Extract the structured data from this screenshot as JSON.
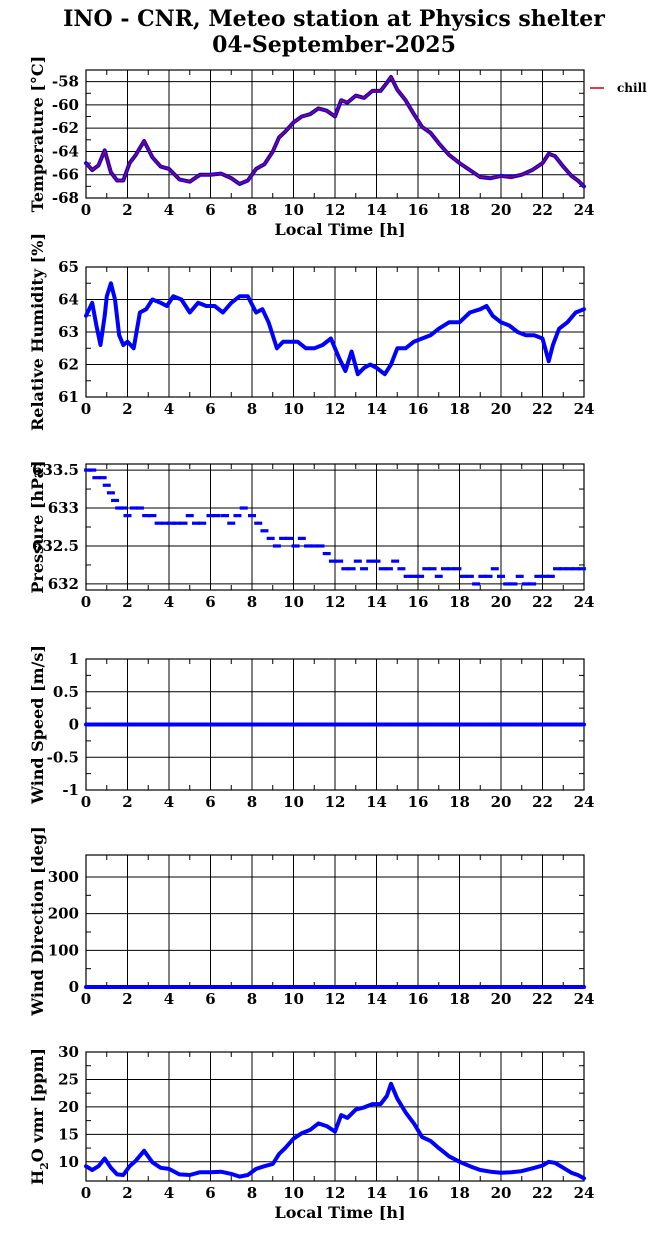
{
  "title_line1": "INO - CNR, Meteo station at Physics shelter",
  "title_line2": "04-September-2025",
  "colors": {
    "series": "#0000ff",
    "chill": "#cc0000",
    "grid": "#000000"
  },
  "chart_data": [
    {
      "type": "line",
      "ylabel": "Temperature [°C]",
      "xlabel": "Local Time [h]",
      "xlim": [
        0,
        24
      ],
      "ylim": [
        -68,
        -57
      ],
      "xticks": [
        0,
        2,
        4,
        6,
        8,
        10,
        12,
        14,
        16,
        18,
        20,
        22,
        24
      ],
      "yticks": [
        -68,
        -66,
        -64,
        -62,
        -60,
        -58
      ],
      "legend": "chill",
      "series": [
        {
          "name": "chill",
          "marker": "line",
          "x": [
            0,
            0.3,
            0.6,
            0.9,
            1.2,
            1.5,
            1.8,
            2.1,
            2.4,
            2.8,
            3.2,
            3.6,
            4.0,
            4.5,
            5.0,
            5.5,
            6.0,
            6.5,
            7.0,
            7.4,
            7.8,
            8.2,
            8.6,
            9.0,
            9.3,
            9.6,
            10.0,
            10.4,
            10.8,
            11.2,
            11.6,
            12.0,
            12.3,
            12.6,
            13.0,
            13.4,
            13.8,
            14.2,
            14.5,
            14.7,
            15.0,
            15.4,
            15.8,
            16.2,
            16.6,
            17.0,
            17.5,
            18.0,
            18.5,
            19.0,
            19.5,
            20.0,
            20.5,
            21.0,
            21.5,
            22.0,
            22.3,
            22.6,
            23.0,
            23.4,
            23.7,
            24.0
          ],
          "values": [
            -65.0,
            -65.6,
            -65.2,
            -63.9,
            -65.8,
            -66.5,
            -66.5,
            -65.0,
            -64.3,
            -63.1,
            -64.5,
            -65.3,
            -65.5,
            -66.4,
            -66.6,
            -66.0,
            -66.0,
            -65.9,
            -66.3,
            -66.8,
            -66.5,
            -65.5,
            -65.1,
            -64.0,
            -62.8,
            -62.3,
            -61.5,
            -61.0,
            -60.8,
            -60.3,
            -60.5,
            -61.0,
            -59.6,
            -59.8,
            -59.2,
            -59.4,
            -58.8,
            -58.8,
            -58.1,
            -57.6,
            -58.7,
            -59.6,
            -60.8,
            -61.9,
            -62.4,
            -63.3,
            -64.3,
            -65.0,
            -65.6,
            -66.2,
            -66.3,
            -66.1,
            -66.2,
            -66.0,
            -65.6,
            -65.0,
            -64.2,
            -64.4,
            -65.3,
            -66.1,
            -66.5,
            -67.0
          ]
        }
      ]
    },
    {
      "type": "line",
      "ylabel": "Relative Humidity [%]",
      "xlabel": "",
      "xlim": [
        0,
        24
      ],
      "ylim": [
        61,
        65
      ],
      "xticks": [
        0,
        2,
        4,
        6,
        8,
        10,
        12,
        14,
        16,
        18,
        20,
        22,
        24
      ],
      "yticks": [
        61,
        62,
        63,
        64,
        65
      ],
      "series": [
        {
          "marker": "line",
          "x": [
            0,
            0.3,
            0.5,
            0.7,
            0.9,
            1.0,
            1.2,
            1.4,
            1.6,
            1.8,
            2.0,
            2.3,
            2.6,
            2.9,
            3.2,
            3.6,
            3.9,
            4.2,
            4.6,
            5.0,
            5.4,
            5.8,
            6.2,
            6.6,
            7.0,
            7.4,
            7.8,
            8.2,
            8.5,
            8.8,
            9.2,
            9.5,
            9.8,
            10.2,
            10.6,
            11.0,
            11.4,
            11.8,
            12.2,
            12.5,
            12.8,
            13.1,
            13.4,
            13.7,
            14.0,
            14.4,
            14.7,
            15.0,
            15.4,
            15.8,
            16.2,
            16.6,
            17.0,
            17.5,
            18.0,
            18.5,
            19.0,
            19.3,
            19.6,
            20.0,
            20.4,
            20.8,
            21.2,
            21.6,
            22.0,
            22.3,
            22.5,
            22.8,
            23.2,
            23.6,
            24.0
          ],
          "values": [
            63.5,
            63.9,
            63.2,
            62.6,
            63.5,
            64.1,
            64.5,
            64.0,
            62.9,
            62.6,
            62.7,
            62.5,
            63.6,
            63.7,
            64.0,
            63.9,
            63.8,
            64.1,
            64.0,
            63.6,
            63.9,
            63.8,
            63.8,
            63.6,
            63.9,
            64.1,
            64.1,
            63.6,
            63.7,
            63.3,
            62.5,
            62.7,
            62.7,
            62.7,
            62.5,
            62.5,
            62.6,
            62.8,
            62.2,
            61.8,
            62.4,
            61.7,
            61.9,
            62.0,
            61.9,
            61.7,
            62.0,
            62.5,
            62.5,
            62.7,
            62.8,
            62.9,
            63.1,
            63.3,
            63.3,
            63.6,
            63.7,
            63.8,
            63.5,
            63.3,
            63.2,
            63.0,
            62.9,
            62.9,
            62.8,
            62.1,
            62.6,
            63.1,
            63.3,
            63.6,
            63.7
          ]
        }
      ]
    },
    {
      "type": "scatter",
      "ylabel": "Pressure [hPa]",
      "xlabel": "",
      "xlim": [
        0,
        24
      ],
      "ylim": [
        631.92,
        633.58
      ],
      "xticks": [
        0,
        2,
        4,
        6,
        8,
        10,
        12,
        14,
        16,
        18,
        20,
        22,
        24
      ],
      "yticks": [
        632,
        632.5,
        633,
        633.5
      ],
      "ytick_labels": [
        "632",
        "632.5",
        "633",
        "633.5"
      ],
      "series": [
        {
          "marker": "dash",
          "x": [
            0.1,
            0.3,
            0.5,
            0.8,
            1.0,
            1.2,
            1.4,
            1.6,
            1.8,
            2.0,
            2.3,
            2.6,
            2.9,
            3.2,
            3.5,
            3.8,
            4.1,
            4.4,
            4.7,
            5.0,
            5.3,
            5.6,
            6.0,
            6.3,
            6.7,
            7.0,
            7.3,
            7.6,
            8.0,
            8.3,
            8.6,
            8.9,
            9.2,
            9.5,
            9.8,
            10.1,
            10.4,
            10.7,
            11.0,
            11.3,
            11.6,
            11.9,
            12.2,
            12.5,
            12.8,
            13.1,
            13.4,
            13.7,
            14.0,
            14.3,
            14.6,
            14.9,
            15.2,
            15.5,
            15.8,
            16.1,
            16.4,
            16.7,
            17.0,
            17.3,
            17.6,
            17.9,
            18.2,
            18.5,
            18.8,
            19.1,
            19.4,
            19.7,
            20.0,
            20.3,
            20.6,
            20.9,
            21.2,
            21.5,
            21.8,
            22.1,
            22.4,
            22.7,
            23.0,
            23.3,
            23.6,
            23.9
          ],
          "values": [
            633.5,
            633.5,
            633.4,
            633.4,
            633.3,
            633.2,
            633.1,
            633.0,
            633.0,
            632.9,
            633.0,
            633.0,
            632.9,
            632.9,
            632.8,
            632.8,
            632.8,
            632.8,
            632.8,
            632.9,
            632.8,
            632.8,
            632.9,
            632.9,
            632.9,
            632.8,
            632.9,
            633.0,
            632.9,
            632.8,
            632.7,
            632.6,
            632.5,
            632.6,
            632.6,
            632.5,
            632.6,
            632.5,
            632.5,
            632.5,
            632.4,
            632.3,
            632.3,
            632.2,
            632.2,
            632.3,
            632.2,
            632.3,
            632.3,
            632.2,
            632.2,
            632.3,
            632.2,
            632.1,
            632.1,
            632.1,
            632.2,
            632.2,
            632.1,
            632.2,
            632.2,
            632.2,
            632.1,
            632.1,
            632.0,
            632.1,
            632.1,
            632.2,
            632.1,
            632.0,
            632.0,
            632.1,
            632.0,
            632.0,
            632.1,
            632.1,
            632.1,
            632.2,
            632.2,
            632.2,
            632.2,
            632.2
          ]
        }
      ]
    },
    {
      "type": "line",
      "ylabel": "Wind Speed [m/s]",
      "xlabel": "",
      "xlim": [
        0,
        24
      ],
      "ylim": [
        -1,
        1
      ],
      "xticks": [
        0,
        2,
        4,
        6,
        8,
        10,
        12,
        14,
        16,
        18,
        20,
        22,
        24
      ],
      "yticks": [
        -1,
        -0.5,
        0,
        0.5,
        1
      ],
      "series": [
        {
          "marker": "line",
          "x": [
            0,
            24
          ],
          "values": [
            0,
            0
          ]
        }
      ]
    },
    {
      "type": "line",
      "ylabel": "Wind Direction [deg]",
      "xlabel": "",
      "xlim": [
        0,
        24
      ],
      "ylim": [
        0,
        360
      ],
      "xticks": [
        0,
        2,
        4,
        6,
        8,
        10,
        12,
        14,
        16,
        18,
        20,
        22,
        24
      ],
      "yticks": [
        0,
        100,
        200,
        300
      ],
      "series": [
        {
          "marker": "line",
          "x": [
            0,
            24
          ],
          "values": [
            0,
            0
          ]
        }
      ]
    },
    {
      "type": "line",
      "ylabel": "H2O vmr [ppm]",
      "ylabel_base": "H",
      "ylabel_sub": "2",
      "ylabel_rest": "O vmr [ppm]",
      "xlabel": "Local Time [h]",
      "xlim": [
        0,
        24
      ],
      "ylim": [
        6.5,
        30
      ],
      "xticks": [
        0,
        2,
        4,
        6,
        8,
        10,
        12,
        14,
        16,
        18,
        20,
        22,
        24
      ],
      "yticks": [
        10,
        15,
        20,
        25,
        30
      ],
      "series": [
        {
          "marker": "line",
          "x": [
            0,
            0.3,
            0.6,
            0.9,
            1.2,
            1.5,
            1.8,
            2.1,
            2.4,
            2.8,
            3.2,
            3.6,
            4.0,
            4.5,
            5.0,
            5.5,
            6.0,
            6.5,
            7.0,
            7.4,
            7.8,
            8.2,
            8.6,
            9.0,
            9.3,
            9.6,
            10.0,
            10.4,
            10.8,
            11.2,
            11.6,
            12.0,
            12.3,
            12.6,
            13.0,
            13.4,
            13.8,
            14.2,
            14.5,
            14.7,
            15.0,
            15.4,
            15.8,
            16.2,
            16.6,
            17.0,
            17.5,
            18.0,
            18.5,
            19.0,
            19.5,
            20.0,
            20.5,
            21.0,
            21.5,
            22.0,
            22.3,
            22.6,
            23.0,
            23.4,
            23.7,
            24.0
          ],
          "values": [
            9.2,
            8.5,
            9.2,
            10.6,
            8.9,
            7.7,
            7.6,
            9.2,
            10.2,
            12.0,
            9.9,
            8.9,
            8.7,
            7.7,
            7.6,
            8.1,
            8.1,
            8.2,
            7.8,
            7.3,
            7.6,
            8.7,
            9.2,
            9.6,
            11.4,
            12.5,
            14.2,
            15.2,
            15.8,
            17.0,
            16.5,
            15.5,
            18.5,
            18.0,
            19.5,
            19.9,
            20.5,
            20.5,
            22.0,
            24.2,
            21.5,
            19.0,
            17.0,
            14.5,
            13.8,
            12.5,
            11.0,
            10.0,
            9.2,
            8.5,
            8.2,
            8.0,
            8.1,
            8.3,
            8.8,
            9.3,
            10.0,
            9.8,
            8.9,
            8.0,
            7.6,
            7.0
          ]
        }
      ]
    }
  ]
}
